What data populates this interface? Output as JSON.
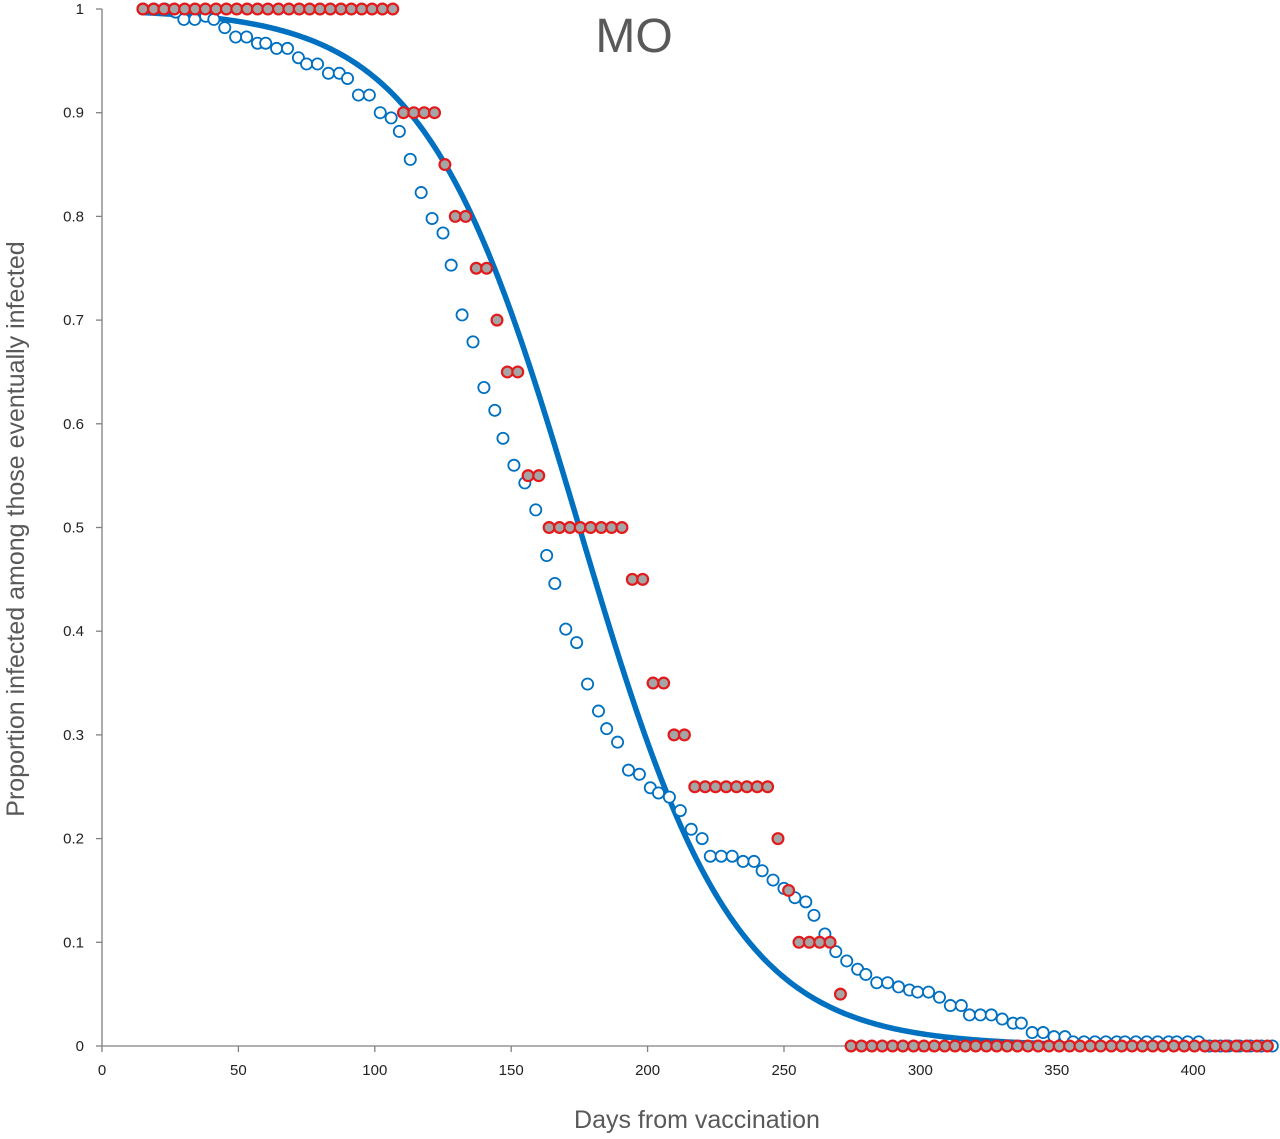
{
  "chart_data": {
    "type": "scatter",
    "title": "MO",
    "xlabel": "Days from vaccination",
    "ylabel": "Proportion infected among those eventually infected",
    "xlim": [
      0,
      430
    ],
    "ylim": [
      0,
      1
    ],
    "x_ticks": [
      "0",
      "50",
      "100",
      "150",
      "200",
      "250",
      "300",
      "350",
      "400"
    ],
    "y_ticks": [
      "0",
      "0.1",
      "0.2",
      "0.3",
      "0.4",
      "0.5",
      "0.6",
      "0.7",
      "0.8",
      "0.9",
      "1"
    ],
    "grid": false,
    "legend": "none",
    "series": [
      {
        "kind": "scatter-open",
        "color": "#0070C0",
        "points": [
          [
            15,
            1
          ],
          [
            19,
            1
          ],
          [
            23,
            1
          ],
          [
            27,
            0.997
          ],
          [
            30,
            0.99
          ],
          [
            34,
            0.99
          ],
          [
            38,
            0.993
          ],
          [
            41,
            0.99
          ],
          [
            45,
            0.982
          ],
          [
            49,
            0.973
          ],
          [
            53,
            0.973
          ],
          [
            57,
            0.967
          ],
          [
            60,
            0.967
          ],
          [
            64,
            0.962
          ],
          [
            68,
            0.962
          ],
          [
            72,
            0.953
          ],
          [
            75,
            0.947
          ],
          [
            79,
            0.947
          ],
          [
            83,
            0.938
          ],
          [
            87,
            0.938
          ],
          [
            90,
            0.933
          ],
          [
            94,
            0.917
          ],
          [
            98,
            0.917
          ],
          [
            102,
            0.9
          ],
          [
            106,
            0.895
          ],
          [
            109,
            0.882
          ],
          [
            113,
            0.855
          ],
          [
            117,
            0.823
          ],
          [
            121,
            0.798
          ],
          [
            125,
            0.784
          ],
          [
            128,
            0.753
          ],
          [
            132,
            0.705
          ],
          [
            136,
            0.679
          ],
          [
            140,
            0.635
          ],
          [
            144,
            0.613
          ],
          [
            147,
            0.586
          ],
          [
            151,
            0.56
          ],
          [
            155,
            0.543
          ],
          [
            159,
            0.517
          ],
          [
            163,
            0.473
          ],
          [
            166,
            0.446
          ],
          [
            170,
            0.402
          ],
          [
            174,
            0.389
          ],
          [
            178,
            0.349
          ],
          [
            182,
            0.323
          ],
          [
            185,
            0.306
          ],
          [
            189,
            0.293
          ],
          [
            193,
            0.266
          ],
          [
            197,
            0.262
          ],
          [
            201,
            0.249
          ],
          [
            204,
            0.244
          ],
          [
            208,
            0.24
          ],
          [
            212,
            0.227
          ],
          [
            216,
            0.209
          ],
          [
            220,
            0.2
          ],
          [
            223,
            0.183
          ],
          [
            227,
            0.183
          ],
          [
            231,
            0.183
          ],
          [
            235,
            0.178
          ],
          [
            239,
            0.178
          ],
          [
            242,
            0.169
          ],
          [
            246,
            0.16
          ],
          [
            250,
            0.152
          ],
          [
            254,
            0.143
          ],
          [
            258,
            0.139
          ],
          [
            261,
            0.126
          ],
          [
            265,
            0.108
          ],
          [
            269,
            0.091
          ],
          [
            273,
            0.082
          ],
          [
            277,
            0.074
          ],
          [
            280,
            0.069
          ],
          [
            284,
            0.061
          ],
          [
            288,
            0.061
          ],
          [
            292,
            0.057
          ],
          [
            296,
            0.054
          ],
          [
            299,
            0.052
          ],
          [
            303,
            0.052
          ],
          [
            307,
            0.047
          ],
          [
            311,
            0.039
          ],
          [
            315,
            0.039
          ],
          [
            318,
            0.03
          ],
          [
            322,
            0.03
          ],
          [
            326,
            0.03
          ],
          [
            330,
            0.026
          ],
          [
            334,
            0.022
          ],
          [
            337,
            0.022
          ],
          [
            341,
            0.013
          ],
          [
            345,
            0.013
          ],
          [
            349,
            0.009
          ],
          [
            353,
            0.009
          ],
          [
            356,
            0.004
          ],
          [
            360,
            0.004
          ],
          [
            364,
            0.004
          ],
          [
            368,
            0.004
          ],
          [
            372,
            0.004
          ],
          [
            375,
            0.004
          ],
          [
            379,
            0.004
          ],
          [
            383,
            0.004
          ],
          [
            387,
            0.004
          ],
          [
            391,
            0.004
          ],
          [
            394,
            0.004
          ],
          [
            398,
            0.004
          ],
          [
            402,
            0.004
          ],
          [
            406,
            0
          ],
          [
            410,
            0
          ],
          [
            413,
            0
          ],
          [
            417,
            0
          ],
          [
            421,
            0
          ],
          [
            425,
            0
          ],
          [
            429,
            0
          ]
        ]
      },
      {
        "kind": "scatter-filled",
        "color": "#E31A1C",
        "fill": "#A5A5A5",
        "points": [
          [
            15,
            1
          ],
          [
            18.9,
            1
          ],
          [
            22.7,
            1
          ],
          [
            26.5,
            1
          ],
          [
            30.3,
            1
          ],
          [
            34.1,
            1
          ],
          [
            37.9,
            1
          ],
          [
            41.8,
            1
          ],
          [
            45.6,
            1
          ],
          [
            49.4,
            1
          ],
          [
            53.2,
            1
          ],
          [
            57,
            1
          ],
          [
            60.8,
            1
          ],
          [
            64.7,
            1
          ],
          [
            68.5,
            1
          ],
          [
            72.3,
            1
          ],
          [
            76.1,
            1
          ],
          [
            79.9,
            1
          ],
          [
            83.7,
            1
          ],
          [
            87.6,
            1
          ],
          [
            91.4,
            1
          ],
          [
            95.2,
            1
          ],
          [
            99,
            1
          ],
          [
            102.8,
            1
          ],
          [
            106.6,
            1
          ],
          [
            110.5,
            0.9
          ],
          [
            114.3,
            0.9
          ],
          [
            118.1,
            0.9
          ],
          [
            121.9,
            0.9
          ],
          [
            125.7,
            0.85
          ],
          [
            129.5,
            0.8
          ],
          [
            133.3,
            0.8
          ],
          [
            137.2,
            0.75
          ],
          [
            141,
            0.75
          ],
          [
            144.8,
            0.7
          ],
          [
            148.6,
            0.65
          ],
          [
            152.4,
            0.65
          ],
          [
            156.2,
            0.55
          ],
          [
            160.1,
            0.55
          ],
          [
            163.9,
            0.5
          ],
          [
            167.7,
            0.5
          ],
          [
            171.5,
            0.5
          ],
          [
            175.3,
            0.5
          ],
          [
            179.1,
            0.5
          ],
          [
            183,
            0.5
          ],
          [
            186.8,
            0.5
          ],
          [
            190.6,
            0.5
          ],
          [
            194.4,
            0.45
          ],
          [
            198.2,
            0.45
          ],
          [
            202,
            0.35
          ],
          [
            205.9,
            0.35
          ],
          [
            209.7,
            0.3
          ],
          [
            213.5,
            0.3
          ],
          [
            217.3,
            0.25
          ],
          [
            221.1,
            0.25
          ],
          [
            224.9,
            0.25
          ],
          [
            228.8,
            0.25
          ],
          [
            232.6,
            0.25
          ],
          [
            236.4,
            0.25
          ],
          [
            240.2,
            0.25
          ],
          [
            244,
            0.25
          ],
          [
            247.8,
            0.2
          ],
          [
            251.7,
            0.15
          ],
          [
            255.5,
            0.1
          ],
          [
            259.3,
            0.1
          ],
          [
            263.1,
            0.1
          ],
          [
            266.9,
            0.1
          ],
          [
            270.7,
            0.05
          ],
          [
            274.6,
            0
          ],
          [
            278.4,
            0
          ],
          [
            282.2,
            0
          ],
          [
            286,
            0
          ],
          [
            289.8,
            0
          ],
          [
            293.6,
            0
          ],
          [
            297.5,
            0
          ],
          [
            301.3,
            0
          ],
          [
            305.1,
            0
          ],
          [
            308.9,
            0
          ],
          [
            312.7,
            0
          ],
          [
            316.5,
            0
          ],
          [
            320.3,
            0
          ],
          [
            324.2,
            0
          ],
          [
            328,
            0
          ],
          [
            331.8,
            0
          ],
          [
            335.6,
            0
          ],
          [
            339.4,
            0
          ],
          [
            343.2,
            0
          ],
          [
            347.1,
            0
          ],
          [
            350.9,
            0
          ],
          [
            354.7,
            0
          ],
          [
            358.5,
            0
          ],
          [
            362.3,
            0
          ],
          [
            366.1,
            0
          ],
          [
            370,
            0
          ],
          [
            373.8,
            0
          ],
          [
            377.6,
            0
          ],
          [
            381.4,
            0
          ],
          [
            385.2,
            0
          ],
          [
            389,
            0
          ],
          [
            392.9,
            0
          ],
          [
            396.7,
            0
          ],
          [
            400.5,
            0
          ],
          [
            404.3,
            0
          ],
          [
            408.1,
            0
          ],
          [
            411.9,
            0
          ],
          [
            415.8,
            0
          ],
          [
            419.6,
            0
          ],
          [
            423.4,
            0
          ],
          [
            427.2,
            0
          ]
        ]
      },
      {
        "kind": "logistic-fit",
        "color": "#0070C0",
        "x0": 175,
        "k": 0.0353,
        "x_start": 15,
        "x_end": 430
      }
    ]
  }
}
